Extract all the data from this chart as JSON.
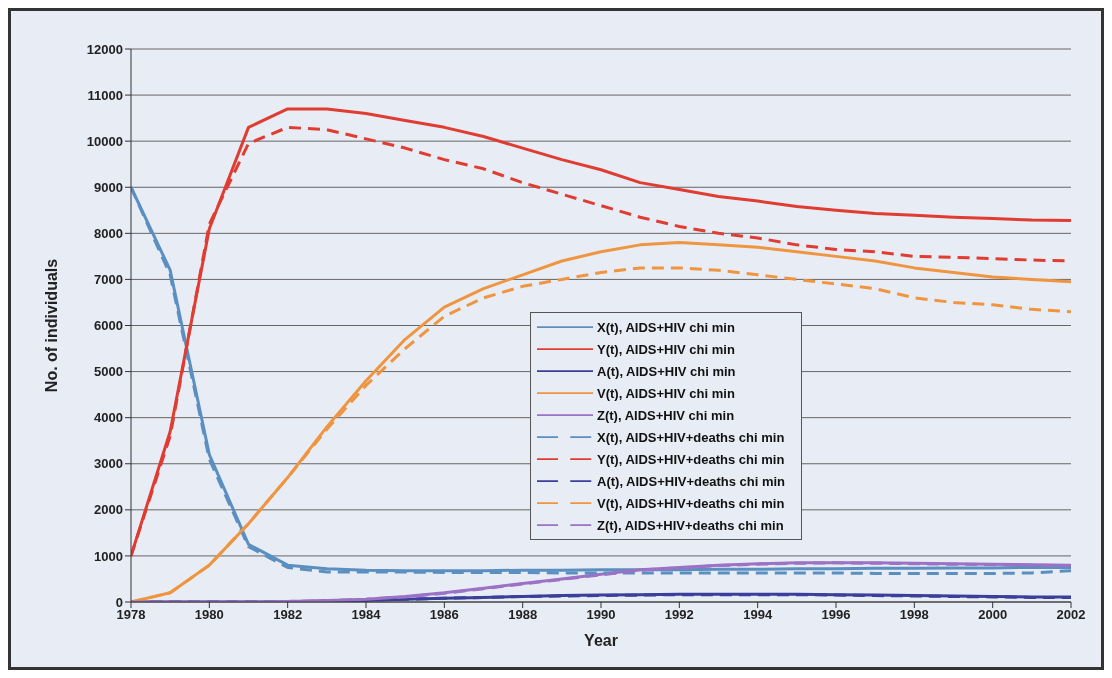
{
  "chart_data": {
    "type": "line",
    "xlabel": "Year",
    "ylabel": "No. of individuals",
    "x": [
      1978,
      1979,
      1980,
      1981,
      1982,
      1983,
      1984,
      1985,
      1986,
      1987,
      1988,
      1989,
      1990,
      1991,
      1992,
      1993,
      1994,
      1995,
      1996,
      1997,
      1998,
      1999,
      2000,
      2001,
      2002
    ],
    "xlim": [
      1978,
      2002
    ],
    "xticks": [
      1978,
      1980,
      1982,
      1984,
      1986,
      1988,
      1990,
      1992,
      1994,
      1996,
      1998,
      2000,
      2002
    ],
    "ylim": [
      0,
      12000
    ],
    "yticks": [
      0,
      1000,
      2000,
      3000,
      4000,
      5000,
      6000,
      7000,
      8000,
      9000,
      10000,
      11000,
      12000
    ],
    "grid": "y",
    "legend": "right",
    "marker": "none",
    "series": [
      {
        "name": "X(t), AIDS+HIV chi min",
        "color": "#5b8fc0",
        "line_style": "solid",
        "values": [
          9000,
          7200,
          3200,
          1250,
          800,
          720,
          690,
          680,
          680,
          680,
          690,
          690,
          700,
          700,
          700,
          710,
          710,
          720,
          720,
          730,
          730,
          740,
          740,
          750,
          750
        ]
      },
      {
        "name": "Y(t), AIDS+HIV chi min",
        "color": "#e03c31",
        "line_style": "solid",
        "values": [
          1000,
          3700,
          8100,
          10300,
          10700,
          10700,
          10600,
          10450,
          10300,
          10100,
          9850,
          9600,
          9380,
          9100,
          8950,
          8800,
          8700,
          8580,
          8500,
          8430,
          8390,
          8350,
          8320,
          8290,
          8280
        ]
      },
      {
        "name": "A(t), AIDS+HIV chi min",
        "color": "#3a3f9a",
        "line_style": "solid",
        "values": [
          0,
          0,
          0,
          0,
          0,
          20,
          40,
          60,
          80,
          100,
          120,
          140,
          150,
          160,
          170,
          170,
          170,
          170,
          160,
          150,
          140,
          130,
          120,
          110,
          110
        ]
      },
      {
        "name": "V(t), AIDS+HIV chi min",
        "color": "#f0953f",
        "line_style": "solid",
        "values": [
          0,
          200,
          800,
          1700,
          2700,
          3800,
          4800,
          5700,
          6400,
          6800,
          7100,
          7400,
          7600,
          7750,
          7800,
          7750,
          7700,
          7600,
          7500,
          7400,
          7250,
          7150,
          7050,
          7000,
          6950
        ]
      },
      {
        "name": "Z(t), AIDS+HIV chi min",
        "color": "#9b72c6",
        "line_style": "solid",
        "values": [
          0,
          0,
          0,
          0,
          10,
          30,
          60,
          120,
          200,
          300,
          400,
          500,
          600,
          700,
          750,
          800,
          830,
          850,
          850,
          850,
          840,
          830,
          820,
          810,
          800
        ]
      },
      {
        "name": "X(t), AIDS+HIV+deaths chi min",
        "color": "#5b8fc0",
        "line_style": "dashed",
        "values": [
          9000,
          7100,
          3100,
          1200,
          750,
          650,
          650,
          650,
          640,
          640,
          640,
          630,
          630,
          630,
          630,
          630,
          630,
          630,
          630,
          620,
          620,
          620,
          620,
          630,
          680
        ]
      },
      {
        "name": "Y(t), AIDS+HIV+deaths chi min",
        "color": "#e03c31",
        "line_style": "dashed",
        "values": [
          1000,
          3600,
          8200,
          9950,
          10300,
          10250,
          10050,
          9850,
          9600,
          9400,
          9100,
          8850,
          8600,
          8350,
          8150,
          8000,
          7900,
          7750,
          7650,
          7600,
          7500,
          7480,
          7450,
          7420,
          7400
        ]
      },
      {
        "name": "A(t), AIDS+HIV+deaths chi min",
        "color": "#3a3f9a",
        "line_style": "dashed",
        "values": [
          0,
          0,
          0,
          0,
          0,
          20,
          40,
          60,
          80,
          100,
          120,
          130,
          140,
          150,
          160,
          160,
          160,
          160,
          150,
          140,
          130,
          120,
          110,
          100,
          100
        ]
      },
      {
        "name": "V(t), AIDS+HIV+deaths chi min",
        "color": "#f0953f",
        "line_style": "dashed",
        "values": [
          0,
          200,
          800,
          1700,
          2700,
          3750,
          4700,
          5500,
          6200,
          6600,
          6850,
          7000,
          7150,
          7250,
          7250,
          7200,
          7100,
          7000,
          6900,
          6800,
          6600,
          6500,
          6450,
          6350,
          6300
        ]
      },
      {
        "name": "Z(t), AIDS+HIV+deaths chi min",
        "color": "#9b72c6",
        "line_style": "dashed",
        "values": [
          0,
          0,
          0,
          0,
          10,
          30,
          60,
          110,
          190,
          290,
          390,
          490,
          590,
          690,
          740,
          790,
          820,
          840,
          850,
          840,
          830,
          820,
          810,
          800,
          790
        ]
      }
    ]
  }
}
